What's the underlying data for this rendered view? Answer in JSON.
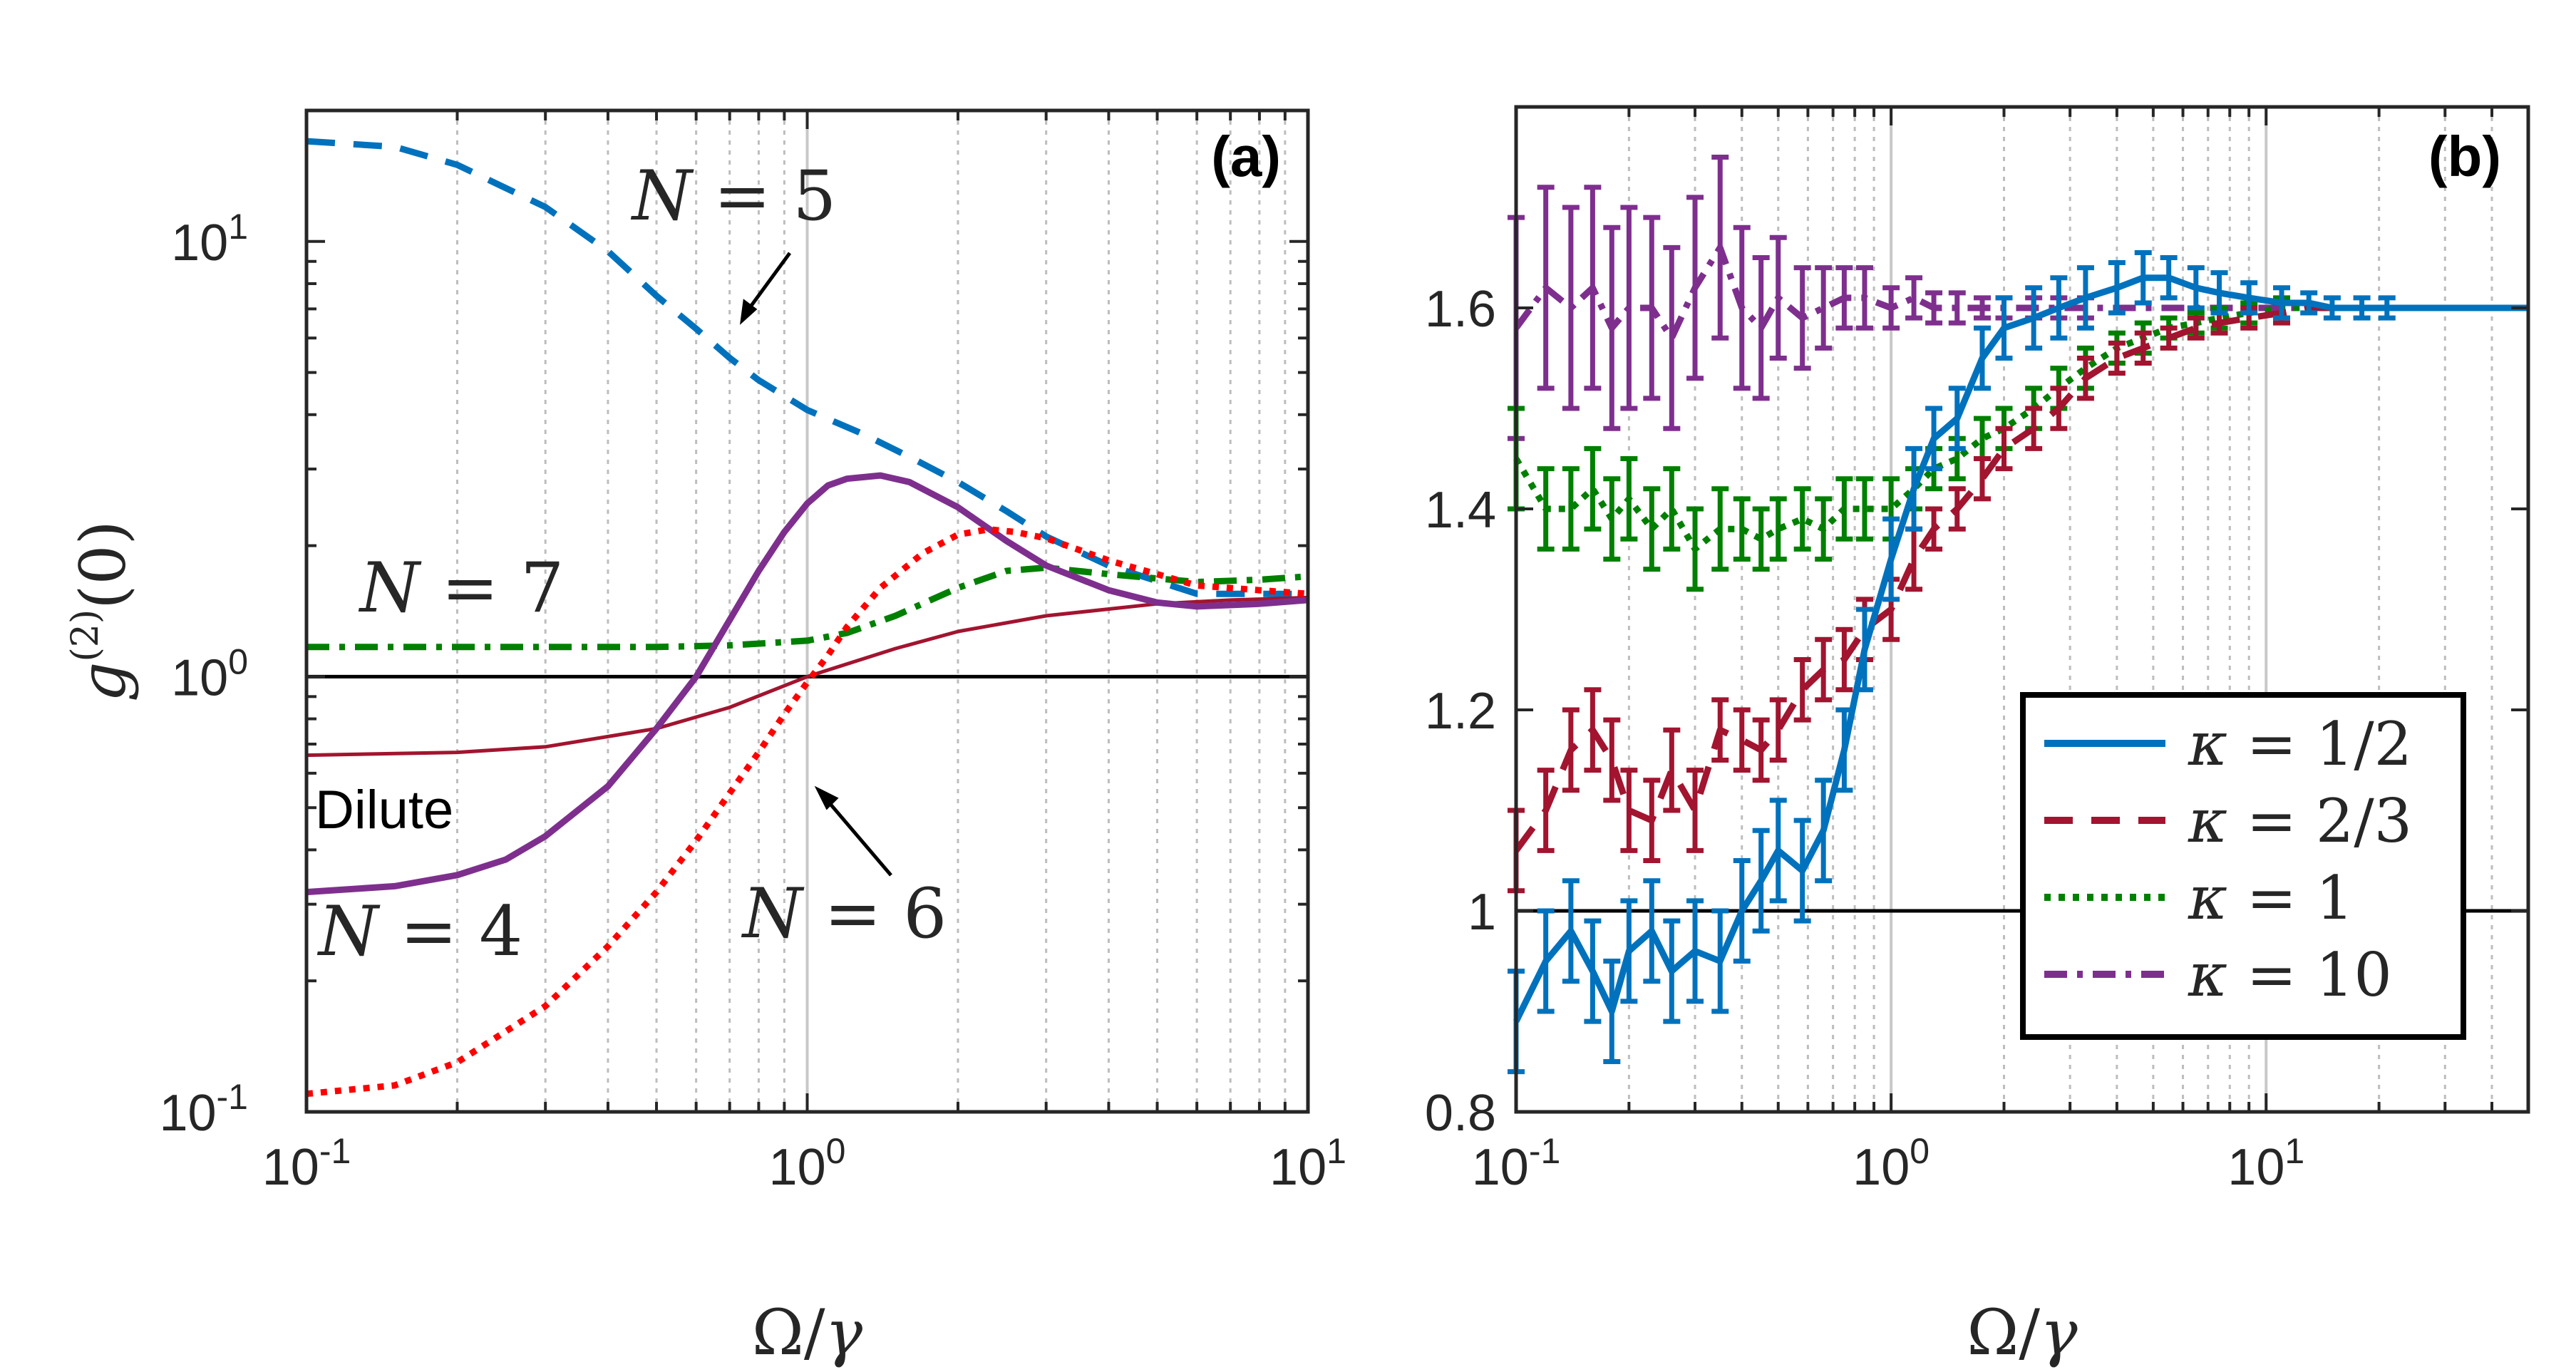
{
  "chart_data": [
    {
      "panel": "(a)",
      "type": "line",
      "xscale": "log",
      "yscale": "log",
      "xlim": [
        0.1,
        10
      ],
      "ylim": [
        0.1,
        20
      ],
      "xlabel": "Ω/γ",
      "ylabel": "g(2)(0)",
      "xticks": [
        0.1,
        1,
        10
      ],
      "xtick_labels": [
        {
          "base": "10",
          "exp": "-1"
        },
        {
          "base": "10",
          "exp": "0"
        },
        {
          "base": "10",
          "exp": "1"
        }
      ],
      "yticks": [
        0.1,
        1,
        10
      ],
      "ytick_labels": [
        {
          "base": "10",
          "exp": "-1"
        },
        {
          "base": "10",
          "exp": "0"
        },
        {
          "base": "10",
          "exp": "1"
        }
      ],
      "reference_line": 1,
      "series": [
        {
          "name": "N = 5",
          "color": "#0072BD",
          "style": "dashed",
          "x": [
            0.1,
            0.15,
            0.2,
            0.3,
            0.4,
            0.5,
            0.6,
            0.7,
            0.8,
            1.0,
            1.3,
            1.6,
            2.0,
            2.5,
            3.0,
            4.0,
            6.0,
            8.0,
            10.0
          ],
          "y": [
            17,
            16.5,
            15,
            12,
            9.5,
            7.5,
            6.3,
            5.4,
            4.8,
            4.1,
            3.6,
            3.2,
            2.8,
            2.4,
            2.1,
            1.8,
            1.55,
            1.55,
            1.55
          ]
        },
        {
          "name": "N = 7",
          "color": "#008000",
          "style": "dashdot",
          "x": [
            0.1,
            0.3,
            0.5,
            0.7,
            1.0,
            1.2,
            1.5,
            2.0,
            2.5,
            3.0,
            4.0,
            6.0,
            8.0,
            10.0
          ],
          "y": [
            1.17,
            1.17,
            1.17,
            1.18,
            1.21,
            1.26,
            1.38,
            1.6,
            1.75,
            1.78,
            1.72,
            1.65,
            1.67,
            1.7
          ]
        },
        {
          "name": "Dilute",
          "color": "#A2142F",
          "style": "solid-thin",
          "x": [
            0.1,
            0.2,
            0.3,
            0.5,
            0.7,
            1.0,
            1.5,
            2.0,
            3.0,
            5.0,
            7.0,
            10.0
          ],
          "y": [
            0.66,
            0.67,
            0.69,
            0.76,
            0.85,
            1.0,
            1.16,
            1.27,
            1.38,
            1.47,
            1.5,
            1.52
          ]
        },
        {
          "name": "N = 4",
          "color": "#7E2F8E",
          "style": "solid",
          "x": [
            0.1,
            0.15,
            0.2,
            0.25,
            0.3,
            0.4,
            0.5,
            0.6,
            0.7,
            0.8,
            0.9,
            1.0,
            1.1,
            1.2,
            1.4,
            1.6,
            2.0,
            2.5,
            3.0,
            4.0,
            5.0,
            6.0,
            8.0,
            10.0
          ],
          "y": [
            0.32,
            0.33,
            0.35,
            0.38,
            0.43,
            0.56,
            0.76,
            1.0,
            1.35,
            1.75,
            2.15,
            2.5,
            2.75,
            2.85,
            2.9,
            2.8,
            2.45,
            2.05,
            1.8,
            1.58,
            1.48,
            1.45,
            1.47,
            1.5
          ]
        },
        {
          "name": "N = 6",
          "color": "#FF0000",
          "style": "dotted",
          "x": [
            0.1,
            0.15,
            0.2,
            0.3,
            0.4,
            0.5,
            0.6,
            0.7,
            0.8,
            0.9,
            1.0,
            1.1,
            1.2,
            1.4,
            1.7,
            2.0,
            2.3,
            2.6,
            3.0,
            4.0,
            6.0,
            10.0
          ],
          "y": [
            0.11,
            0.115,
            0.13,
            0.175,
            0.24,
            0.32,
            0.42,
            0.54,
            0.67,
            0.82,
            0.97,
            1.12,
            1.3,
            1.6,
            1.92,
            2.12,
            2.18,
            2.15,
            2.08,
            1.85,
            1.62,
            1.55
          ]
        }
      ],
      "annotations": [
        {
          "text": "N = 5",
          "var": "N",
          "rest": " = 5"
        },
        {
          "text": "N = 7",
          "var": "N",
          "rest": " = 7"
        },
        {
          "text": "Dilute"
        },
        {
          "text": "N = 4",
          "var": "N",
          "rest": " = 4"
        },
        {
          "text": "N = 6",
          "var": "N",
          "rest": " = 6"
        }
      ]
    },
    {
      "panel": "(b)",
      "type": "line",
      "xscale": "log",
      "yscale": "linear",
      "xlim": [
        0.1,
        50
      ],
      "ylim": [
        0.8,
        1.8
      ],
      "xlabel": "Ω/γ",
      "xticks": [
        0.1,
        1,
        10
      ],
      "xtick_labels": [
        {
          "base": "10",
          "exp": "-1"
        },
        {
          "base": "10",
          "exp": "0"
        },
        {
          "base": "10",
          "exp": "1"
        }
      ],
      "yticks": [
        0.8,
        1,
        1.2,
        1.4,
        1.6
      ],
      "ytick_labels": [
        "0.8",
        "1",
        "1.2",
        "1.4",
        "1.6"
      ],
      "reference_line": 1,
      "legend_position": "bottom-right",
      "series": [
        {
          "name": "κ = 1/2",
          "legend": "κ = 1/2",
          "color": "#0072BD",
          "style": "solid",
          "x": [
            0.1,
            0.12,
            0.14,
            0.16,
            0.18,
            0.2,
            0.23,
            0.26,
            0.3,
            0.35,
            0.4,
            0.45,
            0.5,
            0.58,
            0.66,
            0.75,
            0.85,
            1.0,
            1.15,
            1.3,
            1.5,
            1.75,
            2.0,
            2.4,
            2.8,
            3.3,
            4.0,
            4.7,
            5.5,
            6.5,
            7.5,
            9.0,
            11,
            13,
            15,
            18,
            21,
            25,
            30,
            36,
            43,
            50
          ],
          "y": [
            0.89,
            0.95,
            0.98,
            0.94,
            0.9,
            0.96,
            0.98,
            0.94,
            0.96,
            0.95,
            1.0,
            1.03,
            1.06,
            1.04,
            1.08,
            1.16,
            1.26,
            1.35,
            1.42,
            1.47,
            1.49,
            1.55,
            1.58,
            1.59,
            1.6,
            1.61,
            1.62,
            1.63,
            1.63,
            1.62,
            1.615,
            1.61,
            1.605,
            1.605,
            1.6,
            1.6,
            1.6,
            1.6,
            1.6,
            1.6,
            1.6,
            1.6
          ],
          "err": [
            0.05,
            0.05,
            0.05,
            0.05,
            0.05,
            0.05,
            0.05,
            0.05,
            0.05,
            0.05,
            0.05,
            0.05,
            0.05,
            0.05,
            0.05,
            0.04,
            0.04,
            0.04,
            0.04,
            0.03,
            0.03,
            0.03,
            0.03,
            0.03,
            0.03,
            0.03,
            0.025,
            0.025,
            0.02,
            0.02,
            0.02,
            0.015,
            0.015,
            0.01,
            0.01,
            0.01,
            0.01,
            0.005,
            0.005,
            0.005,
            0.005,
            0.005
          ]
        },
        {
          "name": "κ = 2/3",
          "legend": "κ = 2/3",
          "color": "#A2142F",
          "style": "dashed",
          "x": [
            0.1,
            0.12,
            0.14,
            0.16,
            0.18,
            0.2,
            0.23,
            0.26,
            0.3,
            0.35,
            0.4,
            0.45,
            0.5,
            0.58,
            0.66,
            0.75,
            0.85,
            1.0,
            1.15,
            1.3,
            1.5,
            1.75,
            2.0,
            2.4,
            2.8,
            3.3,
            4.0,
            4.7,
            5.5,
            6.5,
            7.5,
            9.0,
            11,
            13,
            15,
            18,
            21,
            25,
            30,
            36,
            43,
            50
          ],
          "y": [
            1.06,
            1.1,
            1.16,
            1.18,
            1.15,
            1.1,
            1.09,
            1.14,
            1.1,
            1.18,
            1.17,
            1.16,
            1.18,
            1.22,
            1.24,
            1.25,
            1.28,
            1.3,
            1.35,
            1.38,
            1.4,
            1.43,
            1.46,
            1.48,
            1.5,
            1.53,
            1.55,
            1.56,
            1.57,
            1.58,
            1.585,
            1.59,
            1.595,
            1.6,
            1.6,
            1.6,
            1.6,
            1.6,
            1.6,
            1.6,
            1.6,
            1.6
          ],
          "err": [
            0.04,
            0.04,
            0.04,
            0.04,
            0.04,
            0.04,
            0.04,
            0.04,
            0.04,
            0.03,
            0.03,
            0.03,
            0.03,
            0.03,
            0.03,
            0.03,
            0.03,
            0.03,
            0.03,
            0.02,
            0.02,
            0.02,
            0.02,
            0.02,
            0.02,
            0.02,
            0.015,
            0.015,
            0.01,
            0.01,
            0.01,
            0.01,
            0.01,
            0.005,
            0.005,
            0.005,
            0.005,
            0.005,
            0.005,
            0.005,
            0.005,
            0.005
          ]
        },
        {
          "name": "κ = 1",
          "legend": "κ = 1",
          "color": "#008000",
          "style": "dotted",
          "x": [
            0.1,
            0.12,
            0.14,
            0.16,
            0.18,
            0.2,
            0.23,
            0.26,
            0.3,
            0.35,
            0.4,
            0.45,
            0.5,
            0.58,
            0.66,
            0.75,
            0.85,
            1.0,
            1.15,
            1.3,
            1.5,
            1.75,
            2.0,
            2.4,
            2.8,
            3.3,
            4.0,
            4.7,
            5.5,
            6.5,
            7.5,
            9.0,
            11,
            13,
            15,
            18,
            21,
            25,
            30,
            36,
            43,
            50
          ],
          "y": [
            1.45,
            1.4,
            1.4,
            1.42,
            1.39,
            1.41,
            1.38,
            1.4,
            1.36,
            1.38,
            1.38,
            1.37,
            1.38,
            1.39,
            1.38,
            1.4,
            1.4,
            1.4,
            1.42,
            1.44,
            1.45,
            1.47,
            1.48,
            1.5,
            1.52,
            1.54,
            1.56,
            1.57,
            1.58,
            1.585,
            1.59,
            1.595,
            1.6,
            1.6,
            1.6,
            1.6,
            1.6,
            1.6,
            1.6,
            1.6,
            1.6,
            1.6
          ],
          "err": [
            0.05,
            0.04,
            0.04,
            0.04,
            0.04,
            0.04,
            0.04,
            0.04,
            0.04,
            0.04,
            0.03,
            0.03,
            0.03,
            0.03,
            0.03,
            0.03,
            0.03,
            0.03,
            0.02,
            0.02,
            0.02,
            0.02,
            0.02,
            0.02,
            0.02,
            0.02,
            0.015,
            0.015,
            0.01,
            0.01,
            0.01,
            0.01,
            0.01,
            0.005,
            0.005,
            0.005,
            0.005,
            0.005,
            0.005,
            0.005,
            0.005,
            0.005
          ]
        },
        {
          "name": "κ = 10",
          "legend": "κ = 10",
          "color": "#7E2F8E",
          "style": "dashdot",
          "x": [
            0.1,
            0.12,
            0.14,
            0.16,
            0.18,
            0.2,
            0.23,
            0.26,
            0.3,
            0.35,
            0.4,
            0.45,
            0.5,
            0.58,
            0.66,
            0.75,
            0.85,
            1.0,
            1.15,
            1.3,
            1.5,
            1.75,
            2.0,
            2.4,
            2.8,
            3.3,
            4.0,
            4.7,
            5.5,
            6.5,
            7.5,
            9.0,
            11,
            13,
            15,
            18,
            21,
            25,
            30,
            36,
            43,
            50
          ],
          "y": [
            1.58,
            1.62,
            1.6,
            1.62,
            1.58,
            1.6,
            1.6,
            1.57,
            1.62,
            1.66,
            1.6,
            1.58,
            1.61,
            1.59,
            1.6,
            1.61,
            1.61,
            1.6,
            1.61,
            1.6,
            1.6,
            1.6,
            1.6,
            1.6,
            1.6,
            1.6,
            1.6,
            1.6,
            1.6,
            1.6,
            1.6,
            1.6,
            1.6,
            1.6,
            1.6,
            1.6,
            1.6,
            1.6,
            1.6,
            1.6,
            1.6,
            1.6
          ],
          "err": [
            0.11,
            0.1,
            0.1,
            0.1,
            0.1,
            0.1,
            0.09,
            0.09,
            0.09,
            0.09,
            0.08,
            0.07,
            0.06,
            0.05,
            0.04,
            0.03,
            0.03,
            0.02,
            0.02,
            0.015,
            0.015,
            0.01,
            0.01,
            0.01,
            0.01,
            0.01,
            0.005,
            0.005,
            0.005,
            0.005,
            0.005,
            0.005,
            0.005,
            0.005,
            0.005,
            0.005,
            0.005,
            0.005,
            0.005,
            0.005,
            0.005,
            0.005
          ]
        }
      ]
    }
  ]
}
